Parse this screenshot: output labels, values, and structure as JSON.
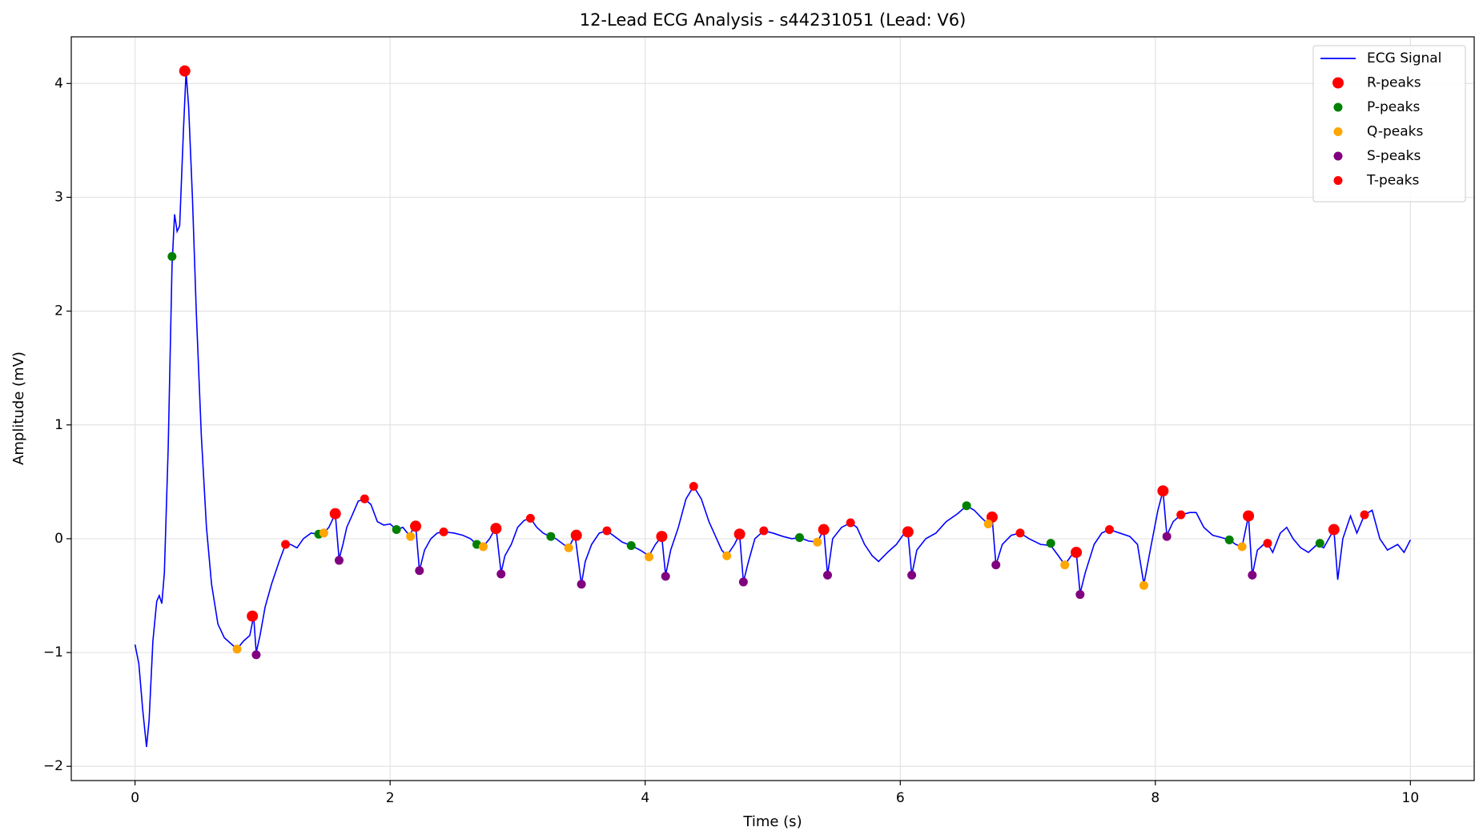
{
  "chart_data": {
    "type": "line",
    "title": "12-Lead ECG Analysis - s44231051 (Lead: V6)",
    "xlabel": "Time (s)",
    "ylabel": "Amplitude (mV)",
    "xlim": [
      -0.5,
      10.5
    ],
    "ylim": [
      -2.125,
      4.41
    ],
    "xticks": [
      0,
      2,
      4,
      6,
      8,
      10
    ],
    "yticks": [
      {
        "value": -2,
        "label": "−2"
      },
      {
        "value": -1,
        "label": "−1"
      },
      0,
      1,
      2,
      3,
      4
    ],
    "grid": true,
    "legend": "upper right",
    "series": [
      {
        "name": "ECG Signal",
        "color": "#0000ff",
        "type": "line",
        "x": [
          0,
          0.03,
          0.06,
          0.09,
          0.11,
          0.14,
          0.17,
          0.19,
          0.21,
          0.23,
          0.26,
          0.29,
          0.31,
          0.33,
          0.35,
          0.38,
          0.4,
          0.42,
          0.45,
          0.48,
          0.52,
          0.56,
          0.6,
          0.65,
          0.7,
          0.76,
          0.8,
          0.85,
          0.9,
          0.93,
          0.95,
          0.98,
          1.02,
          1.07,
          1.13,
          1.18,
          1.22,
          1.27,
          1.32,
          1.38,
          1.44,
          1.48,
          1.52,
          1.57,
          1.6,
          1.63,
          1.66,
          1.7,
          1.75,
          1.8,
          1.85,
          1.9,
          1.95,
          2.0,
          2.05,
          2.1,
          2.15,
          2.2,
          2.23,
          2.27,
          2.32,
          2.37,
          2.42,
          2.5,
          2.57,
          2.63,
          2.68,
          2.73,
          2.78,
          2.83,
          2.87,
          2.9,
          2.95,
          3.0,
          3.05,
          3.1,
          3.15,
          3.2,
          3.25,
          3.3,
          3.36,
          3.4,
          3.45,
          3.5,
          3.53,
          3.58,
          3.64,
          3.7,
          3.76,
          3.82,
          3.89,
          3.96,
          4.03,
          4.08,
          4.13,
          4.16,
          4.2,
          4.26,
          4.32,
          4.38,
          4.44,
          4.5,
          4.56,
          4.6,
          4.64,
          4.7,
          4.74,
          4.77,
          4.81,
          4.86,
          4.93,
          5.0,
          5.08,
          5.15,
          5.21,
          5.28,
          5.35,
          5.4,
          5.43,
          5.47,
          5.54,
          5.61,
          5.66,
          5.72,
          5.78,
          5.83,
          5.9,
          5.97,
          6.02,
          6.06,
          6.09,
          6.13,
          6.2,
          6.28,
          6.36,
          6.45,
          6.52,
          6.58,
          6.64,
          6.69,
          6.72,
          6.75,
          6.8,
          6.87,
          6.94,
          7.01,
          7.1,
          7.18,
          7.24,
          7.29,
          7.34,
          7.38,
          7.41,
          7.45,
          7.52,
          7.58,
          7.64,
          7.72,
          7.8,
          7.86,
          7.91,
          7.96,
          8.02,
          8.06,
          8.09,
          8.14,
          8.2,
          8.27,
          8.32,
          8.38,
          8.45,
          8.52,
          8.58,
          8.63,
          8.68,
          8.73,
          8.76,
          8.8,
          8.85,
          8.88,
          8.92,
          8.98,
          9.03,
          9.08,
          9.14,
          9.2,
          9.27,
          9.32,
          9.36,
          9.4,
          9.43,
          9.47,
          9.53,
          9.58,
          9.64,
          9.7,
          9.76,
          9.82,
          9.9,
          9.95,
          10.0
        ],
        "values": [
          -0.93,
          -1.1,
          -1.5,
          -1.83,
          -1.6,
          -0.9,
          -0.55,
          -0.5,
          -0.57,
          -0.3,
          0.8,
          2.4,
          2.85,
          2.7,
          2.75,
          3.6,
          4.1,
          3.8,
          3.0,
          2.0,
          0.9,
          0.1,
          -0.4,
          -0.75,
          -0.87,
          -0.93,
          -0.97,
          -0.9,
          -0.85,
          -0.68,
          -1.0,
          -0.85,
          -0.6,
          -0.4,
          -0.2,
          -0.05,
          -0.05,
          -0.08,
          0.0,
          0.05,
          0.04,
          0.05,
          0.1,
          0.22,
          -0.18,
          -0.05,
          0.1,
          0.2,
          0.33,
          0.35,
          0.3,
          0.15,
          0.12,
          0.13,
          0.08,
          0.1,
          0.03,
          0.12,
          -0.28,
          -0.1,
          0.0,
          0.05,
          0.06,
          0.05,
          0.03,
          0.0,
          -0.05,
          -0.07,
          0.0,
          0.1,
          -0.3,
          -0.15,
          -0.05,
          0.1,
          0.16,
          0.18,
          0.1,
          0.05,
          0.02,
          0.0,
          -0.05,
          -0.08,
          0.03,
          -0.4,
          -0.2,
          -0.05,
          0.05,
          0.07,
          0.02,
          -0.03,
          -0.06,
          -0.1,
          -0.15,
          -0.05,
          0.02,
          -0.32,
          -0.1,
          0.1,
          0.35,
          0.46,
          0.35,
          0.15,
          0.0,
          -0.1,
          -0.15,
          -0.05,
          0.04,
          -0.38,
          -0.2,
          0.0,
          0.07,
          0.05,
          0.02,
          0.0,
          0.01,
          -0.02,
          -0.03,
          0.08,
          -0.32,
          0.0,
          0.1,
          0.14,
          0.1,
          -0.05,
          -0.15,
          -0.2,
          -0.12,
          -0.05,
          0.03,
          0.06,
          -0.32,
          -0.1,
          0.0,
          0.05,
          0.15,
          0.22,
          0.29,
          0.25,
          0.18,
          0.13,
          0.19,
          -0.23,
          -0.05,
          0.03,
          0.05,
          0.0,
          -0.05,
          -0.06,
          -0.15,
          -0.23,
          -0.15,
          -0.12,
          -0.48,
          -0.3,
          -0.05,
          0.05,
          0.08,
          0.05,
          0.02,
          -0.05,
          -0.4,
          -0.1,
          0.25,
          0.42,
          0.03,
          0.15,
          0.21,
          0.23,
          0.23,
          0.1,
          0.03,
          0.01,
          -0.01,
          -0.05,
          -0.07,
          0.2,
          -0.32,
          -0.1,
          -0.05,
          -0.04,
          -0.12,
          0.05,
          0.1,
          0.0,
          -0.08,
          -0.12,
          -0.05,
          -0.08,
          0.0,
          0.08,
          -0.36,
          0.0,
          0.2,
          0.05,
          0.21,
          0.25,
          0.0,
          -0.1,
          -0.05,
          -0.12,
          -0.01
        ]
      },
      {
        "name": "R-peaks",
        "color": "#ff0000",
        "type": "scatter",
        "x": [
          0.39,
          0.92,
          1.57,
          2.2,
          2.83,
          3.46,
          4.13,
          4.74,
          5.4,
          6.06,
          6.72,
          7.38,
          8.06,
          8.73,
          9.4
        ],
        "values": [
          4.11,
          -0.68,
          0.22,
          0.11,
          0.09,
          0.03,
          0.02,
          0.04,
          0.08,
          0.06,
          0.19,
          -0.12,
          0.42,
          0.2,
          0.08
        ]
      },
      {
        "name": "P-peaks",
        "color": "#008000",
        "type": "scatter",
        "x": [
          0.29,
          1.44,
          2.05,
          2.68,
          3.26,
          3.89,
          5.21,
          6.52,
          7.18,
          8.58,
          9.29
        ],
        "values": [
          2.48,
          0.04,
          0.08,
          -0.05,
          0.02,
          -0.06,
          0.01,
          0.29,
          -0.04,
          -0.01,
          -0.04
        ]
      },
      {
        "name": "Q-peaks",
        "color": "#ffa500",
        "type": "scatter",
        "x": [
          0.8,
          1.48,
          2.16,
          2.73,
          3.4,
          4.03,
          4.64,
          5.35,
          6.69,
          7.29,
          7.91,
          8.68
        ],
        "values": [
          -0.97,
          0.05,
          0.02,
          -0.07,
          -0.08,
          -0.16,
          -0.15,
          -0.03,
          0.13,
          -0.23,
          -0.41,
          -0.07
        ]
      },
      {
        "name": "S-peaks",
        "color": "#800080",
        "type": "scatter",
        "x": [
          0.95,
          1.6,
          2.23,
          2.87,
          3.5,
          4.16,
          4.77,
          5.43,
          6.09,
          6.75,
          7.41,
          8.09,
          8.76
        ],
        "values": [
          -1.02,
          -0.19,
          -0.28,
          -0.31,
          -0.4,
          -0.33,
          -0.38,
          -0.32,
          -0.32,
          -0.23,
          -0.49,
          0.02,
          -0.32
        ]
      },
      {
        "name": "T-peaks",
        "color": "#ff0000",
        "type": "scatter",
        "x": [
          1.18,
          1.8,
          2.42,
          3.1,
          3.7,
          4.38,
          4.93,
          5.61,
          6.94,
          7.64,
          8.2,
          8.88,
          9.64
        ],
        "values": [
          -0.05,
          0.35,
          0.06,
          0.18,
          0.07,
          0.46,
          0.07,
          0.14,
          0.05,
          0.08,
          0.21,
          -0.04,
          0.21
        ]
      }
    ]
  }
}
